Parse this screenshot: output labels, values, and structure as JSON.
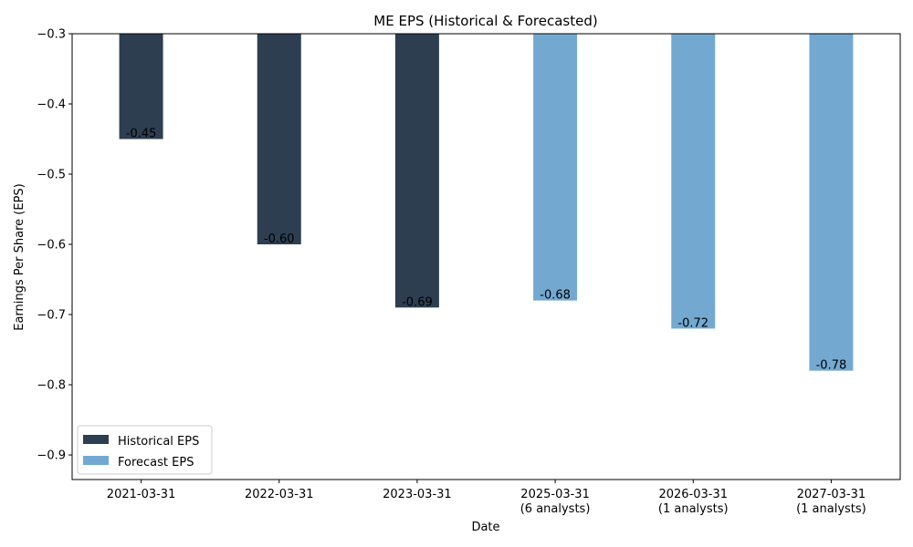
{
  "chart_data": {
    "type": "bar",
    "title": "ME EPS (Historical & Forecasted)",
    "xlabel": "Date",
    "ylabel": "Earnings Per Share (EPS)",
    "ylim": [
      -0.935,
      -0.3
    ],
    "yticks": [
      -0.3,
      -0.4,
      -0.5,
      -0.6,
      -0.7,
      -0.8,
      -0.9
    ],
    "ytick_labels": [
      "−0.3",
      "−0.4",
      "−0.5",
      "−0.6",
      "−0.7",
      "−0.8",
      "−0.9"
    ],
    "grid": false,
    "legend_position": "bottom-left",
    "categories": [
      {
        "line1": "2021-03-31",
        "line2": ""
      },
      {
        "line1": "2022-03-31",
        "line2": ""
      },
      {
        "line1": "2023-03-31",
        "line2": ""
      },
      {
        "line1": "2025-03-31",
        "line2": "(6 analysts)"
      },
      {
        "line1": "2026-03-31",
        "line2": "(1 analysts)"
      },
      {
        "line1": "2027-03-31",
        "line2": "(1 analysts)"
      }
    ],
    "series": [
      {
        "name": "Historical EPS",
        "color": "#2d3e50",
        "values": [
          -0.45,
          -0.6,
          -0.69,
          null,
          null,
          null
        ]
      },
      {
        "name": "Forecast EPS",
        "color": "#73a9d1",
        "values": [
          null,
          null,
          null,
          -0.68,
          -0.72,
          -0.78
        ]
      }
    ],
    "data_labels": [
      "-0.45",
      "-0.60",
      "-0.69",
      "-0.68",
      "-0.72",
      "-0.78"
    ]
  }
}
